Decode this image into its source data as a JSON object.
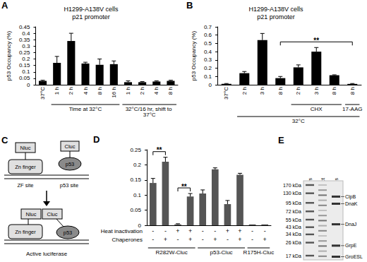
{
  "chart_data": [
    {
      "panel": "A",
      "type": "bar",
      "title": "H1299-A138V cells",
      "subtitle": "p21 promoter",
      "y_label": "p53 Occupancy (%)",
      "categories": [
        "37°C",
        "1 h",
        "2 h",
        "4 h",
        "8 h",
        "16 h",
        "1 h",
        "2 h",
        "4 h",
        "8 h"
      ],
      "values": [
        0.03,
        0.17,
        0.34,
        0.165,
        0.155,
        0.16,
        0.02,
        0.02,
        0.025,
        0.03
      ],
      "errors": [
        0.005,
        0.05,
        0.06,
        0.01,
        0.045,
        0.025,
        0.01,
        0.005,
        0.005,
        0.005
      ],
      "color": "#000000",
      "grid": false,
      "ylim": [
        0,
        0.45
      ],
      "yticks": [
        0,
        0.05,
        0.1,
        0.15,
        0.2,
        0.25,
        0.3,
        0.35,
        0.4,
        0.45
      ],
      "group_labels": [
        {
          "text": "Time at 32°C",
          "from": 1,
          "to": 5,
          "level": 1
        },
        {
          "text": "32°C/16 hr, shift to 37°C",
          "from": 6,
          "to": 9,
          "level": 1
        }
      ]
    },
    {
      "panel": "B",
      "type": "bar",
      "title": "H1299-A138V cells",
      "subtitle": "p21 promoter",
      "y_label": "p53 Occupancy (%)",
      "categories": [
        "37°C",
        "2 h",
        "3 h",
        "8 h",
        "2 h",
        "3 h",
        "8 h",
        "8 h"
      ],
      "values": [
        0.01,
        0.14,
        0.54,
        0.08,
        0.21,
        0.4,
        0.115,
        0.01
      ],
      "errors": [
        0.005,
        0.02,
        0.08,
        0.02,
        0.03,
        0.05,
        0.005,
        0.005
      ],
      "color": "#000000",
      "grid": false,
      "ylim": [
        0,
        0.7
      ],
      "yticks": [
        0,
        0.1,
        0.2,
        0.3,
        0.4,
        0.5,
        0.6,
        0.7
      ],
      "group_labels": [
        {
          "text": "CHX",
          "from": 4,
          "to": 6,
          "level": 1
        },
        {
          "text": "17-AAG",
          "from": 7,
          "to": 7,
          "level": 1
        },
        {
          "text": "32°C",
          "from": 1,
          "to": 7,
          "level": 2
        }
      ],
      "brackets": [
        {
          "text": "**",
          "from": 3,
          "to": 7
        }
      ]
    },
    {
      "panel": "D",
      "type": "bar",
      "values": [
        0.14,
        0.21,
        0.003,
        0.095,
        0.105,
        0.185,
        0.07,
        0.167,
        0.003,
        0.003
      ],
      "errors": [
        0.015,
        0.015,
        0.002,
        0.01,
        0.012,
        0.005,
        0.012,
        0.005,
        0,
        0
      ],
      "color": "#555555",
      "grid": false,
      "ylim": [
        0,
        0.25
      ],
      "yticks": [
        0,
        0.05,
        0.1,
        0.15,
        0.2,
        0.25
      ],
      "x_rows": [
        {
          "label": "Heat inactivation",
          "values": [
            "-",
            "-",
            "+",
            "+",
            "-",
            "-",
            "+",
            "+",
            "-",
            "-"
          ]
        },
        {
          "label": "Chaperones",
          "values": [
            "-",
            "+",
            "-",
            "+",
            "-",
            "+",
            "-",
            "+",
            "-",
            "+"
          ]
        }
      ],
      "group_labels": [
        {
          "text": "R282W-Cluc",
          "from": 0,
          "to": 3,
          "level": 1
        },
        {
          "text": "p53-Cluc",
          "from": 4,
          "to": 7,
          "level": 1
        },
        {
          "text": "R175H-Cluc",
          "from": 8,
          "to": 9,
          "level": 1
        }
      ],
      "brackets": [
        {
          "text": "**",
          "from": 0,
          "to": 1
        },
        {
          "text": "**",
          "from": 2,
          "to": 3
        }
      ]
    }
  ],
  "diagram": {
    "panel": "C",
    "before": {
      "nluc": "Nluc",
      "zinc_finger": "Zn finger",
      "cluc": "Cluc",
      "p53": "p53",
      "zf_site": "ZF site",
      "p53_site": "p53 site"
    },
    "after": {
      "nluc": "Nluc",
      "cluc": "Cluc",
      "zinc_finger": "Zn finger",
      "p53": "p53",
      "label": "Active luciferase"
    }
  },
  "gel": {
    "panel": "E",
    "lanes": [
      "MW markers",
      "Control extract",
      "Chaperones"
    ],
    "markers": [
      {
        "value": 170,
        "label": "170 kDa"
      },
      {
        "value": 130,
        "label": "130 kDa"
      },
      {
        "value": 95,
        "label": "95 kDa"
      },
      {
        "value": 72,
        "label": "72 kDa"
      },
      {
        "value": 55,
        "label": "55 kDa"
      },
      {
        "value": 43,
        "label": "43 kDa"
      },
      {
        "value": 34,
        "label": "34 kDa"
      },
      {
        "value": 26,
        "label": "26 kDa"
      },
      {
        "value": 17,
        "label": "17 kDa"
      }
    ],
    "bands": [
      "ClpB",
      "DnaK",
      "DnaJ",
      "GrpE",
      "GroESL"
    ]
  }
}
